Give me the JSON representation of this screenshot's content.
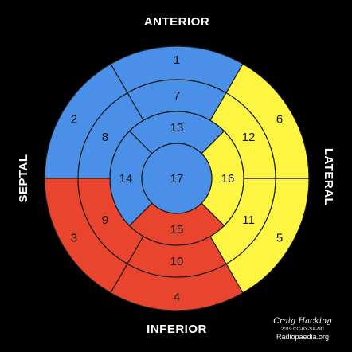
{
  "colors": {
    "blue": "#4a90e8",
    "yellow": "#fdf542",
    "red": "#e9452e",
    "background": "#000000",
    "stroke": "#1a1a1a"
  },
  "directions": {
    "top": "ANTERIOR",
    "bottom": "INFERIOR",
    "left": "SEPTAL",
    "right": "LATERAL"
  },
  "segments": [
    {
      "label": "1",
      "color": "blue"
    },
    {
      "label": "2",
      "color": "blue"
    },
    {
      "label": "3",
      "color": "red"
    },
    {
      "label": "4",
      "color": "red"
    },
    {
      "label": "5",
      "color": "yellow"
    },
    {
      "label": "6",
      "color": "yellow"
    },
    {
      "label": "7",
      "color": "blue"
    },
    {
      "label": "8",
      "color": "blue"
    },
    {
      "label": "9",
      "color": "red"
    },
    {
      "label": "10",
      "color": "red"
    },
    {
      "label": "11",
      "color": "yellow"
    },
    {
      "label": "12",
      "color": "yellow"
    },
    {
      "label": "13",
      "color": "blue"
    },
    {
      "label": "14",
      "color": "blue"
    },
    {
      "label": "15",
      "color": "red"
    },
    {
      "label": "16",
      "color": "yellow"
    },
    {
      "label": "17",
      "color": "blue"
    }
  ],
  "credit": {
    "name": "Craig Hacking",
    "license": "2019 CC-BY-SA-NC",
    "site": "Radiopaedia.org"
  }
}
